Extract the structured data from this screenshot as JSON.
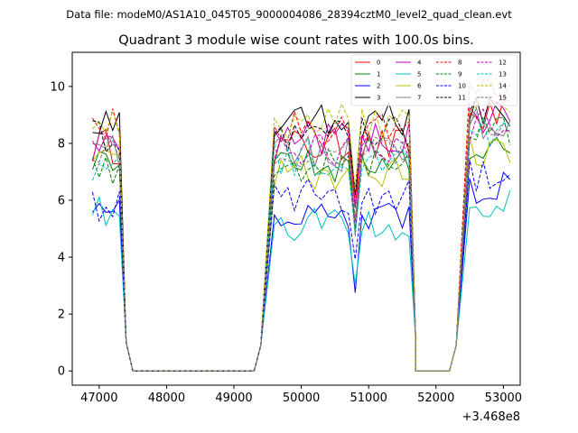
{
  "header": {
    "data_file": "Data file: modeM0/AS1A10_045T05_9000004086_28394cztM0_level2_quad_clean.evt"
  },
  "chart_data": {
    "type": "line",
    "title": "Quadrant 3 module wise count rates with 100.0s bins.",
    "xlabel": "",
    "ylabel": "",
    "x_offset_label": "+3.468e8",
    "xlim": [
      46600,
      53250
    ],
    "ylim": [
      -0.5,
      11.2
    ],
    "x_ticks": [
      47000,
      48000,
      49000,
      50000,
      51000,
      52000,
      53000
    ],
    "x_tick_labels": [
      "47000",
      "48000",
      "49000",
      "50000",
      "51000",
      "52000",
      "53000"
    ],
    "y_ticks": [
      0,
      2,
      4,
      6,
      8,
      10
    ],
    "y_tick_labels": [
      "0",
      "2",
      "4",
      "6",
      "8",
      "10"
    ],
    "grid": false,
    "legend_position": "top-right",
    "segments": [
      {
        "x_start": 46900,
        "x_end": 47300
      },
      {
        "x_start": 49600,
        "x_end": 51600
      },
      {
        "x_start": 52500,
        "x_end": 53100
      }
    ],
    "zero_plateau": [
      {
        "x_start": 47500,
        "x_end": 49300
      },
      {
        "x_start": 51700,
        "x_end": 52200
      }
    ],
    "series": [
      {
        "name": "0",
        "color": "#ff0000",
        "dash": "solid",
        "seg_levels": [
          7.9,
          7.9,
          8.9
        ]
      },
      {
        "name": "1",
        "color": "#008000",
        "dash": "solid",
        "seg_levels": [
          7.5,
          7.1,
          7.9
        ]
      },
      {
        "name": "2",
        "color": "#0000ff",
        "dash": "solid",
        "seg_levels": [
          5.9,
          5.6,
          6.5
        ]
      },
      {
        "name": "3",
        "color": "#000000",
        "dash": "solid",
        "seg_levels": [
          8.6,
          8.8,
          9.2
        ]
      },
      {
        "name": "4",
        "color": "#bf00bf",
        "dash": "solid",
        "seg_levels": [
          8.2,
          8.1,
          8.9
        ]
      },
      {
        "name": "5",
        "color": "#00bfbf",
        "dash": "solid",
        "seg_levels": [
          5.5,
          5.2,
          6.0
        ]
      },
      {
        "name": "6",
        "color": "#bfbf00",
        "dash": "solid",
        "seg_levels": [
          7.3,
          7.0,
          7.8
        ]
      },
      {
        "name": "7",
        "color": "#808080",
        "dash": "solid",
        "seg_levels": [
          7.8,
          7.6,
          8.8
        ]
      },
      {
        "name": "8",
        "color": "#ff0000",
        "dash": "dashed",
        "seg_levels": [
          8.6,
          8.6,
          9.6
        ]
      },
      {
        "name": "9",
        "color": "#008000",
        "dash": "dashed",
        "seg_levels": [
          7.1,
          7.3,
          8.3
        ]
      },
      {
        "name": "10",
        "color": "#0000ff",
        "dash": "dashed",
        "seg_levels": [
          5.8,
          6.1,
          6.8
        ]
      },
      {
        "name": "11",
        "color": "#000000",
        "dash": "dashed",
        "seg_levels": [
          8.2,
          8.3,
          9.1
        ]
      },
      {
        "name": "12",
        "color": "#bf00bf",
        "dash": "dashed",
        "seg_levels": [
          8.0,
          7.8,
          8.7
        ]
      },
      {
        "name": "13",
        "color": "#00bfbf",
        "dash": "dashed",
        "seg_levels": [
          7.2,
          7.5,
          8.4
        ]
      },
      {
        "name": "14",
        "color": "#bfbf00",
        "dash": "dashed",
        "seg_levels": [
          8.9,
          8.8,
          9.7
        ]
      },
      {
        "name": "15",
        "color": "#808080",
        "dash": "dashed",
        "seg_levels": [
          7.7,
          7.6,
          8.5
        ]
      }
    ]
  }
}
